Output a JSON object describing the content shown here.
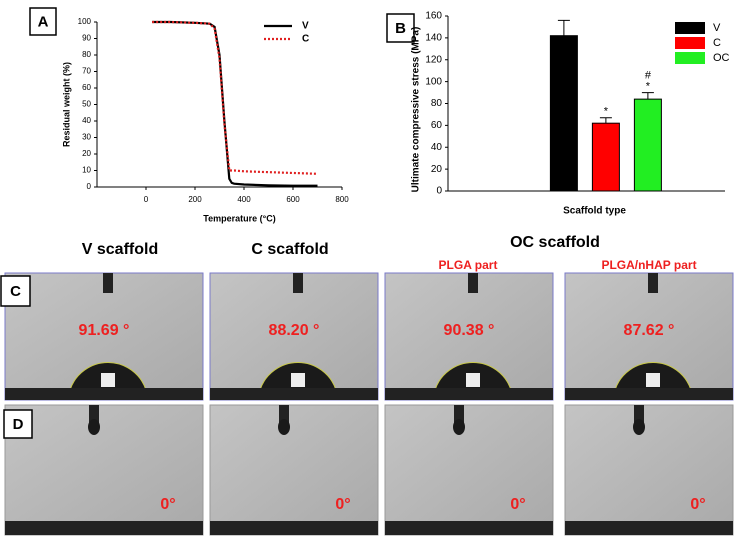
{
  "chart_data": [
    {
      "type": "line",
      "panel_label": "A",
      "xlabel": "Temperature (°C)",
      "ylabel": "Residual weight (%)",
      "x": [
        25,
        100,
        200,
        260,
        280,
        300,
        320,
        340,
        350,
        360,
        400,
        500,
        600,
        700
      ],
      "series": [
        {
          "name": "V",
          "color": "#000000",
          "dash": false,
          "values": [
            100,
            100,
            99.5,
            99,
            97,
            80,
            40,
            5,
            2.5,
            2,
            1.5,
            1,
            0.8,
            0.8
          ]
        },
        {
          "name": "C",
          "color": "#e02020",
          "dash": true,
          "values": [
            100,
            100,
            99.5,
            99,
            96,
            78,
            38,
            10,
            10,
            10,
            9.5,
            9,
            8.5,
            8
          ]
        }
      ],
      "xlim": [
        -200,
        800
      ],
      "xticks": [
        0,
        200,
        400,
        600,
        800
      ],
      "ylim": [
        0,
        100
      ],
      "yticks": [
        0,
        10,
        20,
        30,
        40,
        50,
        60,
        70,
        80,
        90,
        100
      ],
      "legend": "top-right"
    },
    {
      "type": "bar",
      "panel_label": "B",
      "xlabel": "Scaffold type",
      "ylabel": "Ultimate compressive stress (MPa)",
      "series": [
        {
          "name": "V",
          "color": "#000000",
          "values": [
            142
          ],
          "errors": [
            14
          ],
          "annotation": []
        },
        {
          "name": "C",
          "color": "#ff0000",
          "values": [
            62
          ],
          "errors": [
            5
          ],
          "annotation": [
            "*"
          ]
        },
        {
          "name": "OC",
          "color": "#22ee22",
          "values": [
            84
          ],
          "errors": [
            6
          ],
          "annotation": [
            "#",
            "*"
          ]
        }
      ],
      "ylim": [
        0,
        160
      ],
      "yticks": [
        0,
        20,
        40,
        60,
        80,
        100,
        120,
        140,
        160
      ],
      "legend": "top-right"
    }
  ],
  "photos": {
    "labels": [
      "C",
      "D"
    ],
    "columns": [
      "V scaffold",
      "C scaffold",
      "OC scaffold"
    ],
    "subcolumns": [
      "PLGA part",
      "PLGA/nHAP part"
    ],
    "angles_c": [
      "91.69 °",
      "88.20 °",
      "90.38 °",
      "87.62 °"
    ],
    "angles_d": [
      "0°",
      "0°",
      "0°",
      "0°"
    ]
  }
}
